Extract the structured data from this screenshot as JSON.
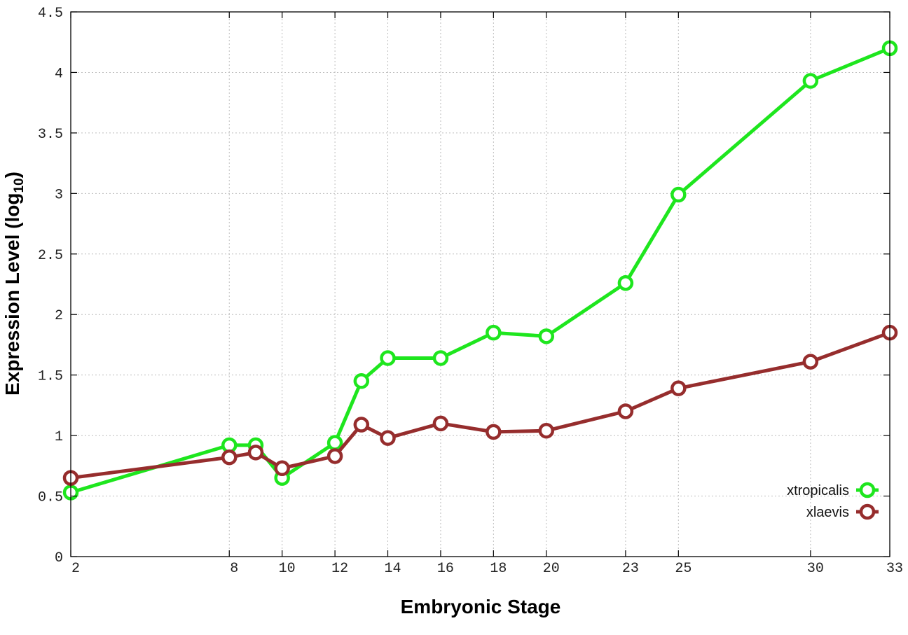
{
  "chart_data": {
    "type": "line",
    "xlabel": "Embryonic Stage",
    "ylabel": "Expression Level (log",
    "ylabel_sub": "10",
    "ylabel_close": ")",
    "xlim": [
      2,
      33
    ],
    "ylim": [
      0,
      4.5
    ],
    "x_ticks": [
      2,
      8,
      10,
      12,
      14,
      16,
      18,
      20,
      23,
      25,
      30,
      33
    ],
    "y_ticks": [
      0,
      0.5,
      1,
      1.5,
      2,
      2.5,
      3,
      3.5,
      4,
      4.5
    ],
    "y_tick_labels": [
      "0",
      "0.5",
      "1",
      "1.5",
      "2",
      "2.5",
      "3",
      "3.5",
      "4",
      "4.5"
    ],
    "grid": true,
    "legend_position": "bottom-right",
    "series": [
      {
        "name": "xtropicalis",
        "color": "#1ee61e",
        "x": [
          2,
          8,
          9,
          10,
          12,
          13,
          14,
          16,
          18,
          20,
          23,
          25,
          30,
          33
        ],
        "y": [
          0.53,
          0.92,
          0.92,
          0.65,
          0.94,
          1.45,
          1.64,
          1.64,
          1.85,
          1.82,
          2.26,
          2.99,
          3.93,
          4.2
        ]
      },
      {
        "name": "xlaevis",
        "color": "#962d2d",
        "x": [
          2,
          8,
          9,
          10,
          12,
          13,
          14,
          16,
          18,
          20,
          23,
          25,
          30,
          33
        ],
        "y": [
          0.65,
          0.82,
          0.86,
          0.73,
          0.83,
          1.09,
          0.98,
          1.1,
          1.03,
          1.04,
          1.2,
          1.39,
          1.61,
          1.85
        ]
      }
    ]
  }
}
